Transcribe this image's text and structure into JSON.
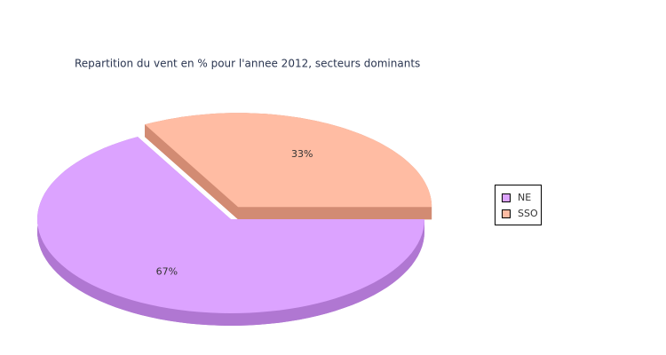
{
  "chart_data": {
    "type": "pie3d",
    "title": "Repartition du vent en % pour l'annee 2012, secteurs dominants",
    "categories": [
      "NE",
      "SSO"
    ],
    "values": [
      67,
      33
    ],
    "value_labels": [
      "67%",
      "33%"
    ],
    "colors": [
      "#dca3ff",
      "#ffbca3"
    ],
    "side_colors": [
      "#b077d2",
      "#d28b73"
    ],
    "exploded": [
      false,
      true
    ]
  }
}
